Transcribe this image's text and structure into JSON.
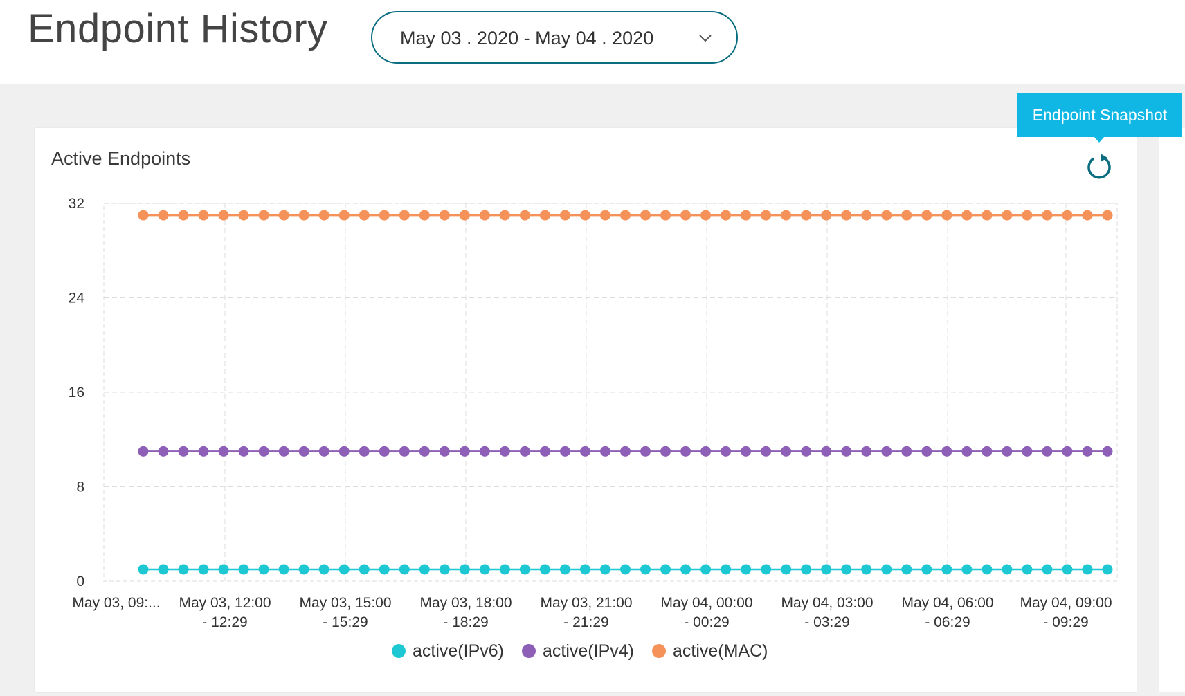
{
  "header": {
    "title": "Endpoint History",
    "date_range": "May 03 . 2020  -  May 04 . 2020"
  },
  "card": {
    "title": "Active Endpoints",
    "tooltip": "Endpoint Snapshot"
  },
  "icons": {
    "date_picker": "chevron-down-icon",
    "refresh": "refresh-icon"
  },
  "colors": {
    "accent": "#0a6d80",
    "tooltip": "#11b7e4",
    "ipv6": "#1ec8d2",
    "ipv4": "#8e5fb6",
    "mac": "#f5925a"
  },
  "chart_data": {
    "type": "line",
    "title": "Active Endpoints",
    "y_ticks": [
      0,
      8,
      16,
      24,
      32
    ],
    "ylim": [
      0,
      32
    ],
    "grid": true,
    "legend_position": "bottom",
    "points_per_series": 49,
    "x_tick_labels": [
      [
        "May 03, 09:..."
      ],
      [
        "May 03, 12:00",
        "- 12:29"
      ],
      [
        "May 03, 15:00",
        "- 15:29"
      ],
      [
        "May 03, 18:00",
        "- 18:29"
      ],
      [
        "May 03, 21:00",
        "- 21:29"
      ],
      [
        "May 04, 00:00",
        "- 00:29"
      ],
      [
        "May 04, 03:00",
        "- 03:29"
      ],
      [
        "May 04, 06:00",
        "- 06:29"
      ],
      [
        "May 04, 09:00",
        "- 09:29"
      ]
    ],
    "series": [
      {
        "name": "active(IPv6)",
        "value": 1,
        "color": "#1ec8d2"
      },
      {
        "name": "active(IPv4)",
        "value": 11,
        "color": "#8e5fb6"
      },
      {
        "name": "active(MAC)",
        "value": 31,
        "color": "#f5925a"
      }
    ]
  }
}
